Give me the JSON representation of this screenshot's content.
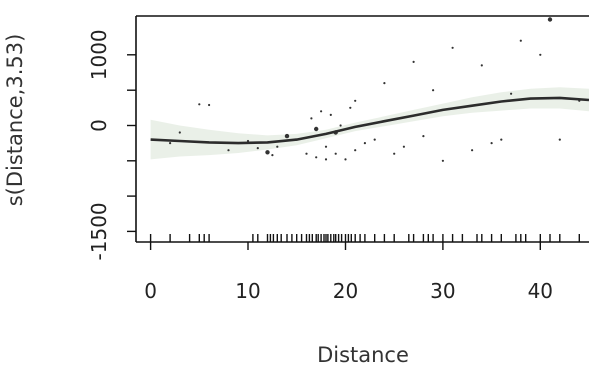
{
  "chart_data": {
    "type": "line",
    "title": "",
    "xlabel": "Distance",
    "ylabel": "s(Distance,3.53)",
    "xlim": [
      -1.5,
      45
    ],
    "ylim": [
      -1650,
      1550
    ],
    "x_ticks": [
      0,
      10,
      20,
      30,
      40
    ],
    "y_ticks": [
      -1500,
      0,
      1000
    ],
    "y_minor_ticks": [
      -1000,
      -500,
      500
    ],
    "grid": false,
    "series": [
      {
        "style": "solid",
        "x": [
          0,
          3,
          6,
          9,
          12,
          15,
          18,
          21,
          24,
          27,
          30,
          33,
          36,
          39,
          42,
          45
        ],
        "y": [
          -200,
          -220,
          -240,
          -250,
          -240,
          -200,
          -120,
          -20,
          60,
          140,
          220,
          280,
          340,
          380,
          390,
          360
        ]
      },
      {
        "style": "confidence-band",
        "x": [
          0,
          3,
          6,
          9,
          12,
          15,
          18,
          21,
          24,
          27,
          30,
          33,
          36,
          39,
          42,
          45
        ],
        "upper": [
          80,
          0,
          -60,
          -110,
          -140,
          -120,
          -60,
          40,
          130,
          220,
          310,
          400,
          470,
          520,
          540,
          520
        ],
        "lower": [
          -480,
          -440,
          -420,
          -390,
          -340,
          -280,
          -180,
          -80,
          -10,
          60,
          130,
          180,
          210,
          240,
          240,
          200
        ]
      }
    ],
    "residual_points": {
      "x": [
        2,
        3,
        5,
        6,
        8,
        10,
        11,
        12,
        12.5,
        13,
        14,
        15,
        16,
        16.5,
        17,
        17,
        17.5,
        18,
        18,
        18.5,
        19,
        19,
        19.5,
        20,
        20.5,
        21,
        21,
        22,
        23,
        24,
        25,
        26,
        27,
        28,
        29,
        30,
        31,
        33,
        34,
        35,
        36,
        37,
        38,
        40,
        41,
        42,
        44
      ],
      "y": [
        -250,
        -100,
        300,
        290,
        -350,
        -220,
        -320,
        -380,
        -420,
        -300,
        -150,
        -200,
        -400,
        100,
        -50,
        -450,
        200,
        -300,
        -480,
        150,
        -400,
        -100,
        0,
        -480,
        250,
        -350,
        350,
        -250,
        -200,
        600,
        -400,
        -300,
        900,
        -150,
        500,
        -500,
        1100,
        -350,
        850,
        -250,
        -200,
        450,
        1200,
        1000,
        1500,
        -200,
        350
      ],
      "sizes": [
        1,
        1,
        1,
        1,
        1,
        1,
        1,
        2,
        1,
        1,
        2,
        1,
        1,
        1,
        2,
        1,
        1,
        1,
        1,
        1,
        1,
        2,
        1,
        1,
        1,
        1,
        1,
        1,
        1,
        1,
        1,
        1,
        1,
        1,
        1,
        1,
        1,
        1,
        1,
        1,
        1,
        1,
        1,
        1,
        2,
        1,
        1
      ]
    },
    "rug_x": [
      0,
      2,
      4,
      5,
      5.5,
      6,
      10.5,
      11,
      12,
      12.3,
      12.6,
      13,
      13.4,
      14,
      14.5,
      15,
      15.5,
      16,
      16.3,
      16.6,
      17,
      17.2,
      17.5,
      17.8,
      18,
      18.2,
      18.5,
      18.8,
      19,
      19.3,
      19.6,
      20,
      20.3,
      20.6,
      21,
      21.5,
      22,
      23,
      24,
      25,
      26.5,
      27,
      28,
      28.5,
      29,
      30,
      31,
      32,
      33.5,
      34,
      35,
      36,
      37.5,
      38,
      38.5,
      40,
      41,
      42,
      44
    ]
  }
}
